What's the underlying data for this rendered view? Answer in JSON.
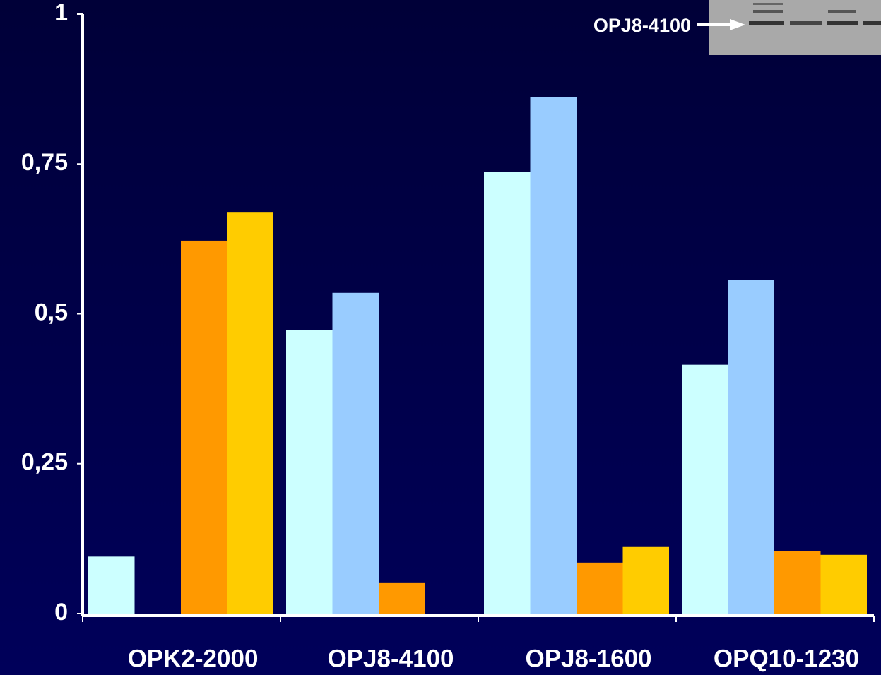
{
  "chart_data": {
    "type": "bar",
    "annotation": "OPJ8-4100",
    "categories": [
      "OPK2-2000",
      "OPJ8-4100",
      "OPJ8-1600",
      "OPQ10-1230"
    ],
    "series": [
      {
        "color": "#ccffff",
        "values": [
          0.095,
          0.473,
          0.737,
          0.415
        ]
      },
      {
        "color": "#99ccff",
        "values": [
          0,
          0.535,
          0.862,
          0.557
        ]
      },
      {
        "color": "#ff9900",
        "values": [
          0.622,
          0.052,
          0.085,
          0.104
        ]
      },
      {
        "color": "#ffcc00",
        "values": [
          0.67,
          0,
          0.111,
          0.098
        ]
      }
    ],
    "ylim": [
      0,
      1
    ],
    "yticks": [
      0,
      {
        "value": 0.25,
        "label": "0,25"
      },
      {
        "value": 0.5,
        "label": "0,5"
      },
      {
        "value": 0.75,
        "label": "0,75"
      },
      1
    ],
    "grid": false
  }
}
